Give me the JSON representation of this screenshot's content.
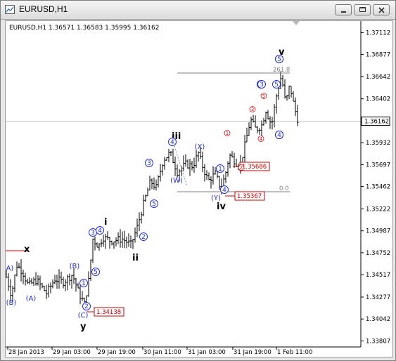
{
  "window": {
    "title": "EURUSD,H1",
    "buttons": {
      "minimize": "minimize-icon",
      "maximize": "maximize-icon",
      "close": "close-icon"
    }
  },
  "chart_info": "EURUSD,H1  1.36571 1.36583 1.35995 1.36162",
  "chart_data": {
    "type": "ohlc",
    "symbol": "EURUSD",
    "timeframe": "H1",
    "last_bar": {
      "open": 1.36571,
      "high": 1.36583,
      "low": 1.35995,
      "close": 1.36162
    },
    "current_price": 1.36162,
    "y_ticks": [
      "1.37112",
      "1.36877",
      "1.36642",
      "1.36402",
      "1.36162",
      "1.35932",
      "1.35697",
      "1.35462",
      "1.35222",
      "1.34987",
      "1.34752",
      "1.34517",
      "1.34277",
      "1.34042",
      "1.33807"
    ],
    "x_ticks": [
      "28 Jan 2013",
      "29 Jan 03:00",
      "29 Jan 19:00",
      "30 Jan 11:00",
      "31 Jan 03:00",
      "31 Jan 19:00",
      "1 Feb 11:00"
    ],
    "ylim": [
      1.3378,
      1.3716
    ],
    "price_boxes": [
      "1.35686",
      "1.35367",
      "1.34138"
    ],
    "fib_labels": [
      "261.8",
      "0.0"
    ],
    "wave_labels": {
      "major": [
        "x",
        "y",
        "i",
        "ii",
        "iii",
        "iv",
        "v"
      ],
      "blue": [
        "(A)",
        "(B)",
        "(A)",
        "(B)",
        "(C)",
        "1",
        "2",
        "3",
        "4",
        "5",
        "(W)",
        "(X)",
        "(Y)",
        "1",
        "2",
        "3",
        "4",
        "5",
        "3",
        "4",
        "5",
        "4",
        "5",
        "3",
        "5",
        "4"
      ],
      "red": [
        "1",
        "2",
        "3",
        "4",
        "5"
      ]
    }
  }
}
